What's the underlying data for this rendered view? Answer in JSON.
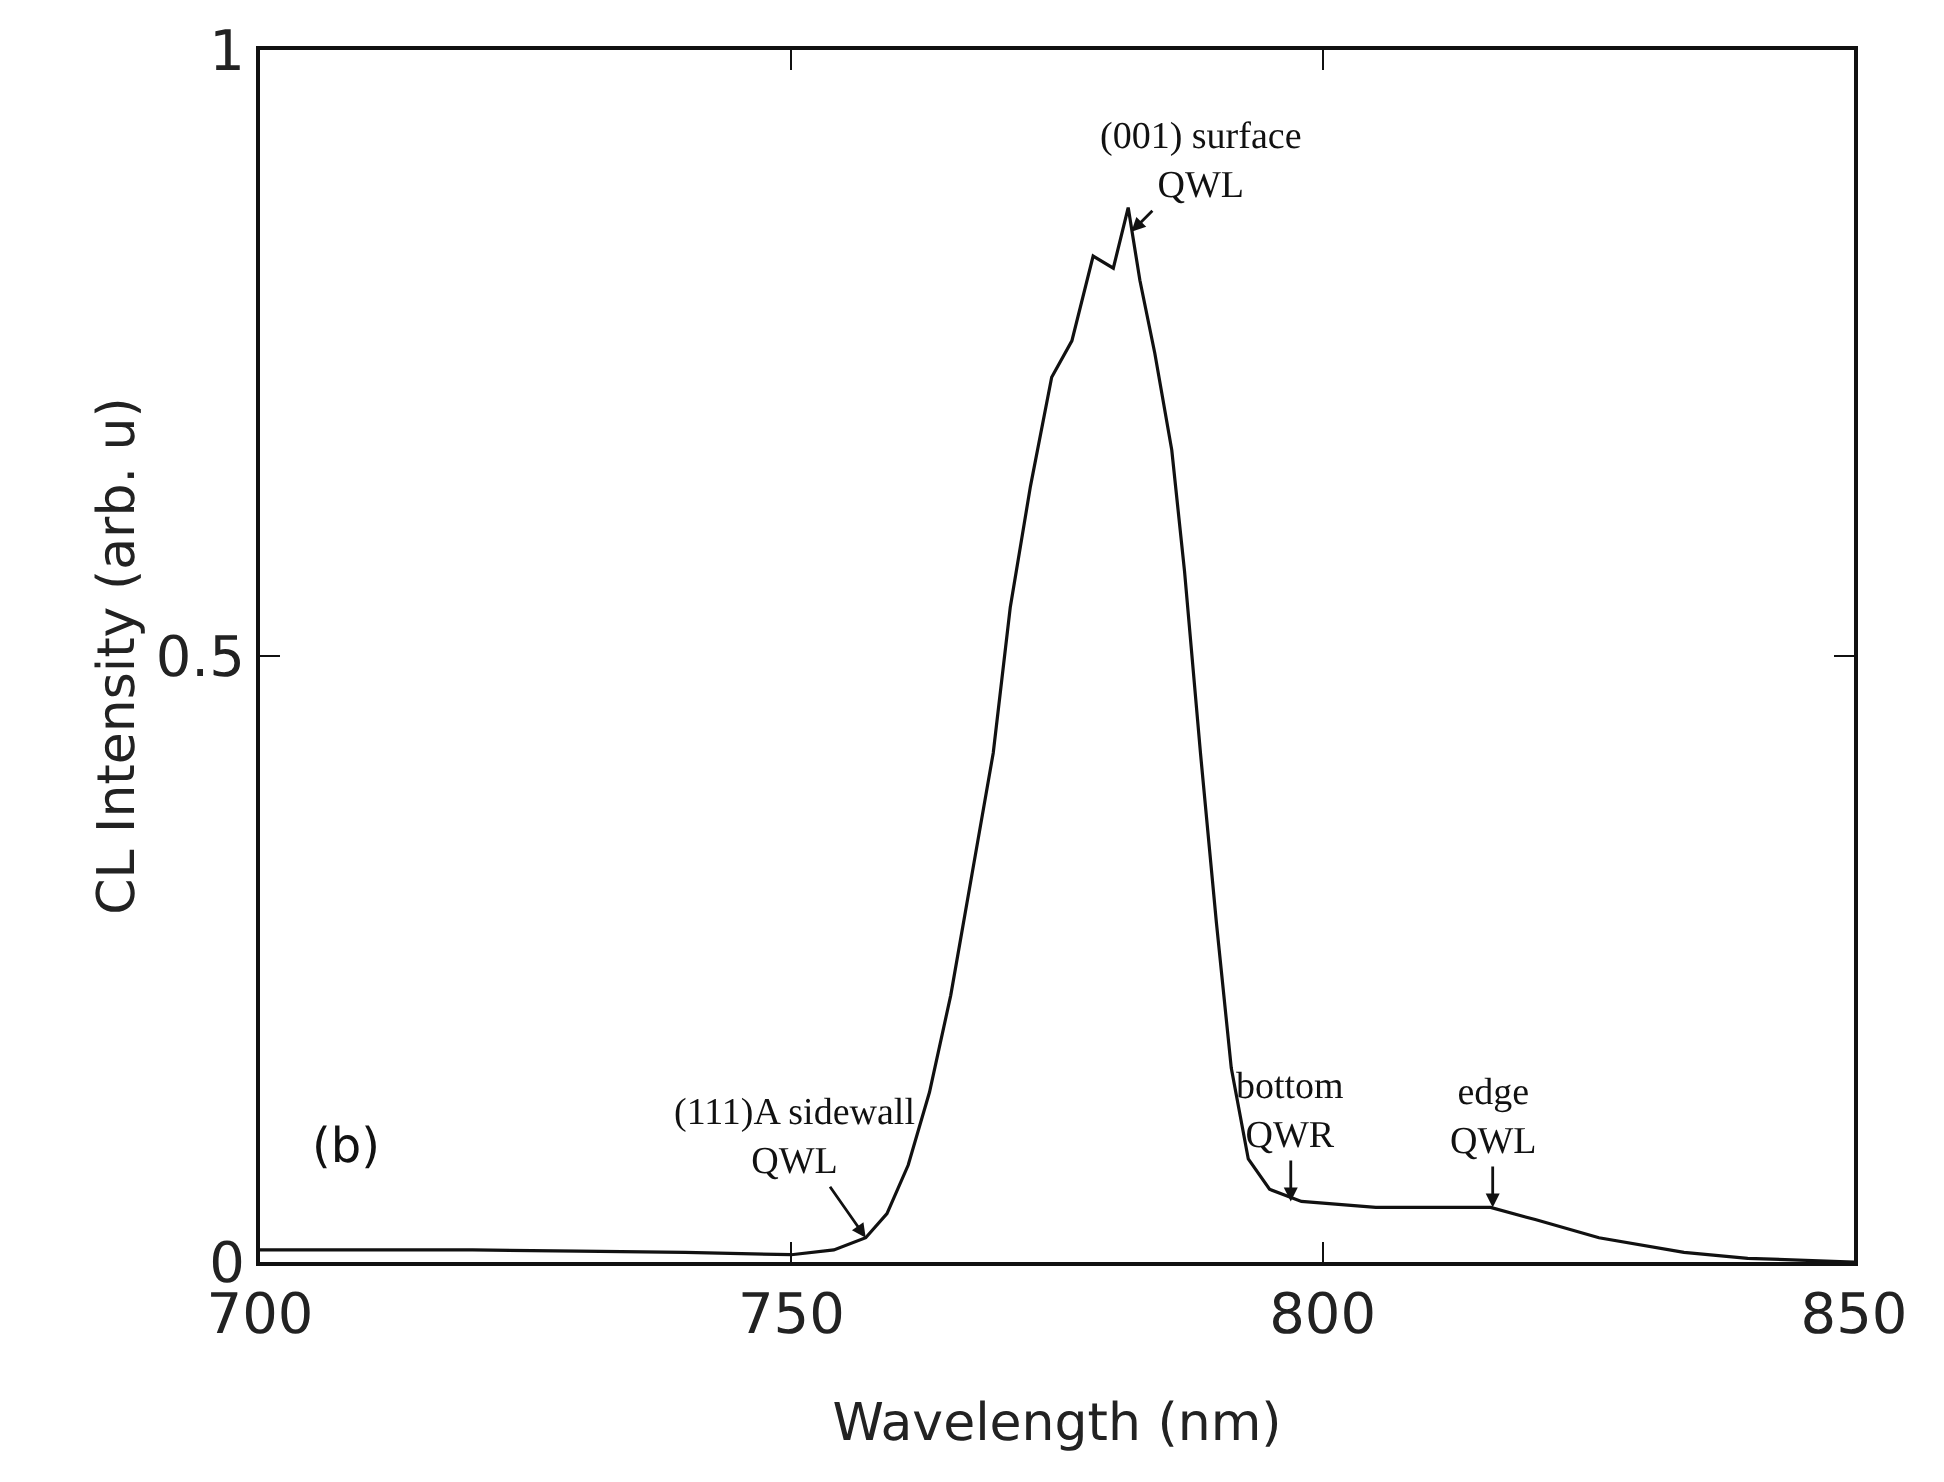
{
  "chart_data": {
    "type": "line",
    "xlabel": "Wavelength (nm)",
    "ylabel": "CL Intensity (arb. u)",
    "x": [
      700,
      710,
      720,
      730,
      740,
      750,
      754,
      757,
      759,
      761,
      763,
      765,
      767,
      769,
      770.6,
      772.5,
      774.5,
      776.4,
      778.4,
      780.3,
      781.7,
      782.8,
      784.2,
      785.8,
      787,
      788.5,
      790,
      791.4,
      793,
      795,
      798,
      805,
      810,
      815.8,
      820,
      826,
      834,
      840,
      850
    ],
    "series": [
      {
        "color": "#111111",
        "values": [
          0.01,
          0.01,
          0.01,
          0.009,
          0.008,
          0.006,
          0.01,
          0.02,
          0.04,
          0.08,
          0.14,
          0.22,
          0.32,
          0.42,
          0.54,
          0.64,
          0.73,
          0.76,
          0.83,
          0.82,
          0.87,
          0.81,
          0.75,
          0.67,
          0.57,
          0.42,
          0.28,
          0.16,
          0.085,
          0.06,
          0.05,
          0.045,
          0.045,
          0.045,
          0.035,
          0.02,
          0.008,
          0.003,
          0
        ]
      }
    ],
    "xlim": [
      700,
      850
    ],
    "ylim": [
      0,
      1
    ],
    "xticks": [
      700,
      750,
      800,
      850
    ],
    "yticks": [
      0,
      0.5,
      1
    ],
    "grid": false,
    "marker": "none",
    "line_style": "solid",
    "annotations": [
      {
        "text": "(001) surface\nQWL",
        "x": 782,
        "y": 0.85
      },
      {
        "text": "(111)A sidewall\nQWL",
        "x": 757,
        "y": 0.02
      },
      {
        "text": "bottom\nQWR",
        "x": 797,
        "y": 0.05
      },
      {
        "text": "edge\nQWL",
        "x": 816,
        "y": 0.045
      },
      "(b)"
    ]
  }
}
